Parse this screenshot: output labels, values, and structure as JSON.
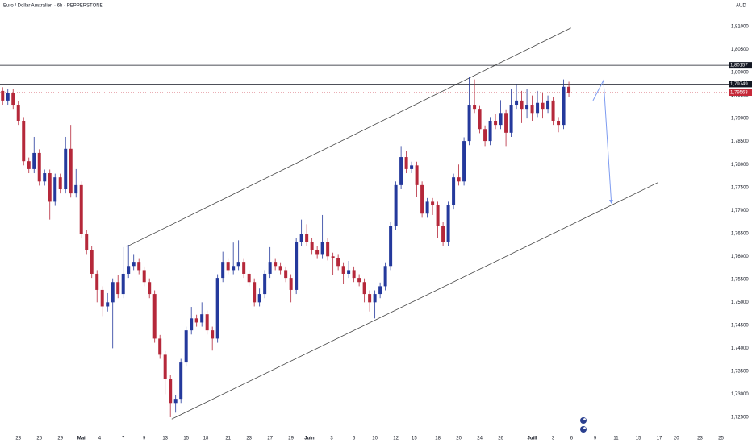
{
  "chart_data": {
    "type": "candlestick",
    "title": "Euro / Dollar Australien · 6h · PEPPERSTONE",
    "currency": "AUD",
    "up_color": "#24399c",
    "down_color": "#b5283a",
    "x": [
      1,
      3,
      5,
      7,
      9,
      11,
      13,
      15,
      17,
      19,
      21,
      23,
      25,
      27,
      29,
      31,
      33,
      35,
      37,
      39,
      41,
      43,
      45,
      47,
      49,
      51,
      53,
      55,
      57,
      59,
      61,
      63,
      65,
      67,
      69,
      71,
      73,
      75,
      77,
      79,
      81,
      83,
      85,
      87,
      89,
      91,
      93,
      95,
      97,
      99,
      101,
      103,
      105,
      107,
      109,
      111,
      113,
      115,
      117,
      119,
      121,
      123,
      125,
      127,
      129,
      131,
      133,
      135,
      137,
      139,
      141,
      143,
      145,
      147,
      149,
      151,
      153,
      155,
      157,
      159,
      161,
      163,
      165,
      167,
      169,
      171,
      173,
      175,
      177,
      179,
      181,
      183,
      185,
      187,
      189,
      191,
      193,
      195,
      197,
      199,
      201,
      203,
      205,
      207,
      209,
      211,
      213,
      215,
      217
    ],
    "open": [
      1.796,
      1.7939,
      1.7956,
      1.793,
      1.7895,
      1.7807,
      1.779,
      1.7825,
      1.7763,
      1.7781,
      1.7719,
      1.7772,
      1.7746,
      1.7834,
      1.7737,
      1.7755,
      1.7649,
      1.7614,
      1.7562,
      1.7527,
      1.7491,
      1.75,
      1.7544,
      1.7518,
      1.7562,
      1.7579,
      1.7588,
      1.757,
      1.7544,
      1.7518,
      1.7421,
      1.7386,
      1.7334,
      1.7281,
      1.729,
      1.7369,
      1.7439,
      1.7465,
      1.7456,
      1.7474,
      1.7439,
      1.7421,
      1.7553,
      1.7588,
      1.757,
      1.7579,
      1.7588,
      1.7562,
      1.7544,
      1.75,
      1.7518,
      1.7562,
      1.7588,
      1.7579,
      1.757,
      1.7553,
      1.7527,
      1.7632,
      1.7649,
      1.7632,
      1.7614,
      1.7605,
      1.7632,
      1.76,
      1.7597,
      1.7579,
      1.7562,
      1.757,
      1.7553,
      1.7544,
      1.7518,
      1.75,
      1.7518,
      1.7535,
      1.7579,
      1.7667,
      1.7755,
      1.7816,
      1.779,
      1.7798,
      1.7755,
      1.7693,
      1.7719,
      1.7711,
      1.7667,
      1.7632,
      1.7711,
      1.7772,
      1.7763,
      1.7851,
      1.793,
      1.7921,
      1.7877,
      1.7851,
      1.7895,
      1.7886,
      1.7912,
      1.7869,
      1.793,
      1.7939,
      1.7921,
      1.793,
      1.7912,
      1.7934,
      1.7921,
      1.7939,
      1.7895,
      1.7886,
      1.7969
    ],
    "high": [
      1.7968,
      1.7964,
      1.7964,
      1.7938,
      1.7903,
      1.7815,
      1.786,
      1.7833,
      1.7789,
      1.7789,
      1.778,
      1.778,
      1.786,
      1.7886,
      1.779,
      1.7763,
      1.7657,
      1.7622,
      1.757,
      1.7535,
      1.752,
      1.7552,
      1.756,
      1.762,
      1.7625,
      1.7605,
      1.7596,
      1.7578,
      1.7552,
      1.7526,
      1.7429,
      1.7394,
      1.7342,
      1.7298,
      1.7377,
      1.7447,
      1.749,
      1.7473,
      1.75,
      1.7482,
      1.7447,
      1.7561,
      1.761,
      1.7596,
      1.763,
      1.7635,
      1.7596,
      1.757,
      1.7552,
      1.753,
      1.757,
      1.762,
      1.7596,
      1.7587,
      1.7578,
      1.7561,
      1.764,
      1.768,
      1.767,
      1.764,
      1.7622,
      1.769,
      1.764,
      1.7608,
      1.7605,
      1.7587,
      1.759,
      1.7578,
      1.7561,
      1.7552,
      1.7526,
      1.7526,
      1.7543,
      1.7587,
      1.7675,
      1.7763,
      1.784,
      1.783,
      1.7806,
      1.7806,
      1.7763,
      1.7727,
      1.7727,
      1.7719,
      1.7675,
      1.7719,
      1.778,
      1.78,
      1.7859,
      1.799,
      1.7985,
      1.7929,
      1.7885,
      1.7903,
      1.791,
      1.794,
      1.792,
      1.7965,
      1.7975,
      1.796,
      1.7965,
      1.795,
      1.796,
      1.7955,
      1.795,
      1.7947,
      1.7903,
      1.7985,
      1.798
    ],
    "low": [
      1.793,
      1.793,
      1.7921,
      1.7886,
      1.7798,
      1.7781,
      1.7781,
      1.7754,
      1.7754,
      1.768,
      1.771,
      1.7737,
      1.7737,
      1.7728,
      1.7728,
      1.764,
      1.7605,
      1.7553,
      1.75,
      1.747,
      1.748,
      1.74,
      1.7509,
      1.7509,
      1.7553,
      1.757,
      1.7561,
      1.7535,
      1.7509,
      1.7412,
      1.7377,
      1.73,
      1.725,
      1.726,
      1.7281,
      1.736,
      1.743,
      1.7447,
      1.7447,
      1.743,
      1.7395,
      1.7412,
      1.7544,
      1.7561,
      1.7561,
      1.757,
      1.7553,
      1.7535,
      1.7491,
      1.7491,
      1.7509,
      1.7553,
      1.757,
      1.7561,
      1.7544,
      1.75,
      1.7518,
      1.7623,
      1.7623,
      1.7605,
      1.7596,
      1.7596,
      1.7591,
      1.756,
      1.757,
      1.754,
      1.7553,
      1.7544,
      1.7535,
      1.75,
      1.748,
      1.7465,
      1.7509,
      1.7526,
      1.757,
      1.7658,
      1.7746,
      1.7781,
      1.7781,
      1.773,
      1.7684,
      1.7684,
      1.769,
      1.764,
      1.7623,
      1.7623,
      1.7702,
      1.7754,
      1.7754,
      1.7842,
      1.7912,
      1.7868,
      1.784,
      1.7842,
      1.7877,
      1.7877,
      1.784,
      1.786,
      1.7921,
      1.789,
      1.79,
      1.7895,
      1.7903,
      1.79,
      1.7912,
      1.7886,
      1.787,
      1.7877,
      1.7947
    ],
    "close": [
      1.7939,
      1.7956,
      1.793,
      1.7895,
      1.7807,
      1.779,
      1.7825,
      1.7763,
      1.7781,
      1.7719,
      1.7772,
      1.7746,
      1.7834,
      1.7737,
      1.7755,
      1.7649,
      1.7614,
      1.7562,
      1.7527,
      1.7491,
      1.75,
      1.7544,
      1.7518,
      1.7562,
      1.7579,
      1.7588,
      1.757,
      1.7544,
      1.7518,
      1.7421,
      1.7386,
      1.7334,
      1.7281,
      1.729,
      1.7369,
      1.7439,
      1.7465,
      1.7456,
      1.7474,
      1.7439,
      1.7421,
      1.7553,
      1.7588,
      1.757,
      1.7579,
      1.7588,
      1.7562,
      1.7544,
      1.75,
      1.7518,
      1.7562,
      1.7588,
      1.7579,
      1.757,
      1.7553,
      1.7527,
      1.7632,
      1.7649,
      1.7632,
      1.7614,
      1.7605,
      1.7632,
      1.76,
      1.7597,
      1.7579,
      1.7562,
      1.757,
      1.7553,
      1.7544,
      1.7518,
      1.75,
      1.7518,
      1.7535,
      1.7579,
      1.7667,
      1.7755,
      1.7816,
      1.779,
      1.7798,
      1.7755,
      1.7693,
      1.7719,
      1.7711,
      1.7667,
      1.7632,
      1.7711,
      1.7772,
      1.7763,
      1.7851,
      1.793,
      1.7921,
      1.7877,
      1.7851,
      1.7895,
      1.7886,
      1.7912,
      1.7869,
      1.793,
      1.7939,
      1.7921,
      1.793,
      1.7912,
      1.7934,
      1.7921,
      1.7939,
      1.7895,
      1.7886,
      1.7969,
      1.7956
    ],
    "xlim": [
      0,
      277
    ],
    "xticks": [
      {
        "value": 7,
        "label": "23"
      },
      {
        "value": 15,
        "label": "25"
      },
      {
        "value": 23,
        "label": "29"
      },
      {
        "value": 31,
        "label": "Mai"
      },
      {
        "value": 38,
        "label": "4"
      },
      {
        "value": 47,
        "label": "7"
      },
      {
        "value": 55,
        "label": "9"
      },
      {
        "value": 63,
        "label": "13"
      },
      {
        "value": 71,
        "label": "15"
      },
      {
        "value": 78.5,
        "label": "18"
      },
      {
        "value": 87,
        "label": "21"
      },
      {
        "value": 95,
        "label": "23"
      },
      {
        "value": 103,
        "label": "27"
      },
      {
        "value": 111,
        "label": "29"
      },
      {
        "value": 118,
        "label": "Juin"
      },
      {
        "value": 126.5,
        "label": "3"
      },
      {
        "value": 135,
        "label": "6"
      },
      {
        "value": 143,
        "label": "10"
      },
      {
        "value": 151,
        "label": "12"
      },
      {
        "value": 158,
        "label": "15"
      },
      {
        "value": 167,
        "label": "18"
      },
      {
        "value": 175,
        "label": "20"
      },
      {
        "value": 183,
        "label": "24"
      },
      {
        "value": 191,
        "label": "26"
      },
      {
        "value": 203,
        "label": "Juill"
      },
      {
        "value": 211,
        "label": "3"
      },
      {
        "value": 218,
        "label": "6"
      },
      {
        "value": 227,
        "label": "9"
      },
      {
        "value": 235,
        "label": "11"
      },
      {
        "value": 243.5,
        "label": "15"
      },
      {
        "value": 251.5,
        "label": "17"
      },
      {
        "value": 258,
        "label": "20"
      },
      {
        "value": 267,
        "label": "23"
      },
      {
        "value": 275,
        "label": "25"
      }
    ],
    "ylim": [
      1.72184,
      1.81579
    ],
    "yticks": [
      {
        "value": 1.725,
        "label": "1,72500"
      },
      {
        "value": 1.73,
        "label": "1,73000"
      },
      {
        "value": 1.735,
        "label": "1,73500"
      },
      {
        "value": 1.74,
        "label": "1,74000"
      },
      {
        "value": 1.745,
        "label": "1,74500"
      },
      {
        "value": 1.75,
        "label": "1,75000"
      },
      {
        "value": 1.755,
        "label": "1,75500"
      },
      {
        "value": 1.76,
        "label": "1,76000"
      },
      {
        "value": 1.765,
        "label": "1,76500"
      },
      {
        "value": 1.77,
        "label": "1,77000"
      },
      {
        "value": 1.775,
        "label": "1,77500"
      },
      {
        "value": 1.78,
        "label": "1,78000"
      },
      {
        "value": 1.785,
        "label": "1,78500"
      },
      {
        "value": 1.79,
        "label": "1,79000"
      },
      {
        "value": 1.795,
        "label": "1,79500"
      },
      {
        "value": 1.8,
        "label": "1,80000"
      },
      {
        "value": 1.805,
        "label": "1,80500"
      },
      {
        "value": 1.81,
        "label": "1,81000"
      }
    ],
    "price_lines": [
      {
        "value": 1.80157,
        "label": "1,80157",
        "color": "#131722"
      },
      {
        "value": 1.79749,
        "label": "1,79749",
        "color": "#131722"
      },
      {
        "value": 1.79563,
        "label": "1,79563",
        "color": "#c62838"
      }
    ],
    "trendlines": [
      {
        "x": [
          48.3,
          217.8
        ],
        "y": [
          1.7621,
          1.8097
        ],
        "color": "#444444"
      },
      {
        "x": [
          65.5,
          251.1
        ],
        "y": [
          1.7246,
          1.7761
        ],
        "color": "#444444"
      }
    ],
    "projection": {
      "x": [
        226.2,
        230.2,
        233.2
      ],
      "y": [
        1.7939,
        1.7983,
        1.7716
      ],
      "color": "#7d9bf0"
    }
  }
}
